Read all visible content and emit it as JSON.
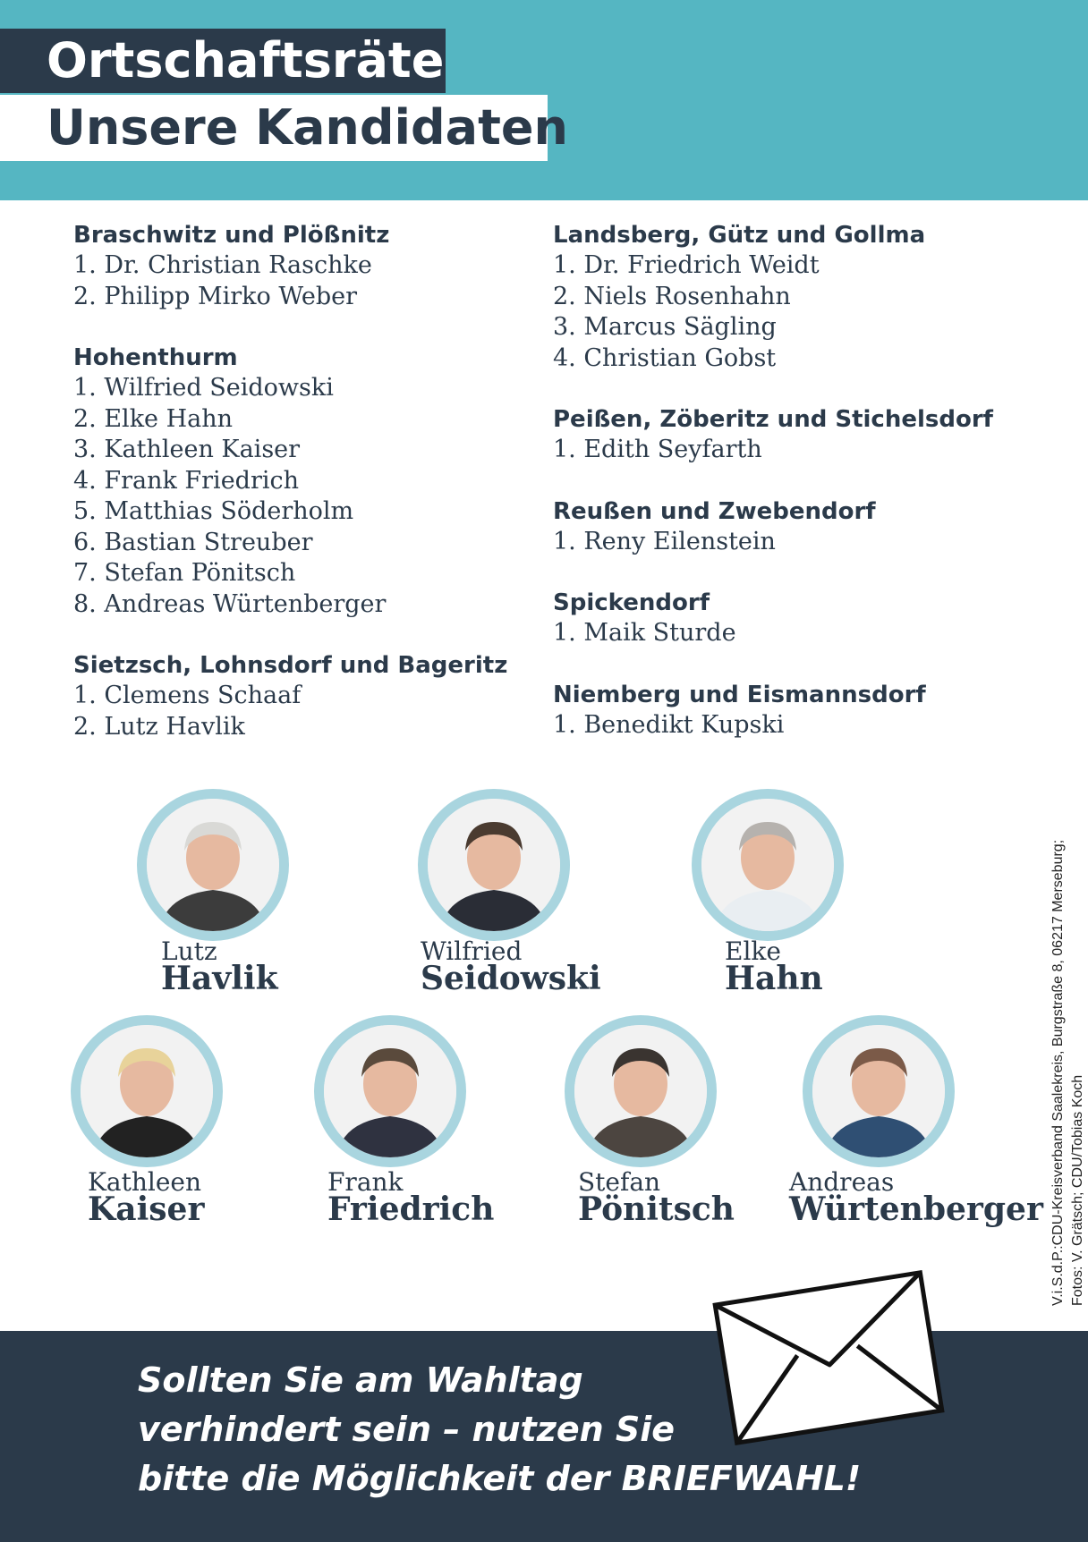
{
  "header": {
    "title": "Ortschaftsräte",
    "subtitle": "Unsere Kandidaten"
  },
  "districts_left": [
    {
      "name": "Braschwitz und Plößnitz",
      "candidates": [
        "1. Dr. Christian Raschke",
        "2. Philipp Mirko Weber"
      ]
    },
    {
      "name": "Hohenthurm",
      "candidates": [
        "1. Wilfried Seidowski",
        "2. Elke Hahn",
        "3. Kathleen Kaiser",
        "4. Frank Friedrich",
        "5. Matthias Söderholm",
        "6. Bastian Streuber",
        "7. Stefan Pönitsch",
        "8. Andreas Würtenberger"
      ]
    },
    {
      "name": "Sietzsch, Lohnsdorf und Bageritz",
      "candidates": [
        "1. Clemens Schaaf",
        "2. Lutz Havlik"
      ]
    }
  ],
  "districts_right": [
    {
      "name": "Landsberg, Gütz und Gollma",
      "candidates": [
        "1. Dr. Friedrich Weidt",
        "2. Niels Rosenhahn",
        "3. Marcus Sägling",
        "4. Christian Gobst"
      ]
    },
    {
      "name": "Peißen, Zöberitz und Stichelsdorf",
      "candidates": [
        "1. Edith Seyfarth"
      ]
    },
    {
      "name": "Reußen und Zwebendorf",
      "candidates": [
        "1. Reny Eilenstein"
      ]
    },
    {
      "name": "Spickendorf",
      "candidates": [
        "1. Maik Sturde"
      ]
    },
    {
      "name": "Niemberg und Eismannsdorf",
      "candidates": [
        "1. Benedikt Kupski"
      ]
    }
  ],
  "portraits": [
    {
      "first": "Lutz",
      "last": "Havlik"
    },
    {
      "first": "Wilfried",
      "last": "Seidowski"
    },
    {
      "first": "Elke",
      "last": "Hahn"
    },
    {
      "first": "Kathleen",
      "last": "Kaiser"
    },
    {
      "first": "Frank",
      "last": "Friedrich"
    },
    {
      "first": "Stefan",
      "last": "Pönitsch"
    },
    {
      "first": "Andreas",
      "last": "Würtenberger"
    }
  ],
  "imprint": {
    "line1": "V.i.S.d.P.:CDU-Kreisverband Saalekreis, Burgstraße 8, 06217 Merseburg;",
    "line2": "Fotos: V. Grätsch; CDU/Tobias Koch"
  },
  "footer": {
    "line1": "Sollten Sie am Wahltag",
    "line2": "verhindert sein – nutzen Sie",
    "line3_prefix": "bitte die Möglichkeit der ",
    "line3_strong": "BRIEFWAHL!"
  },
  "icons": {
    "envelope": "envelope-icon",
    "portrait": "person-photo"
  },
  "colors": {
    "teal": "#55b6c2",
    "navy": "#2b3a4a",
    "ring": "#a9d5df"
  }
}
